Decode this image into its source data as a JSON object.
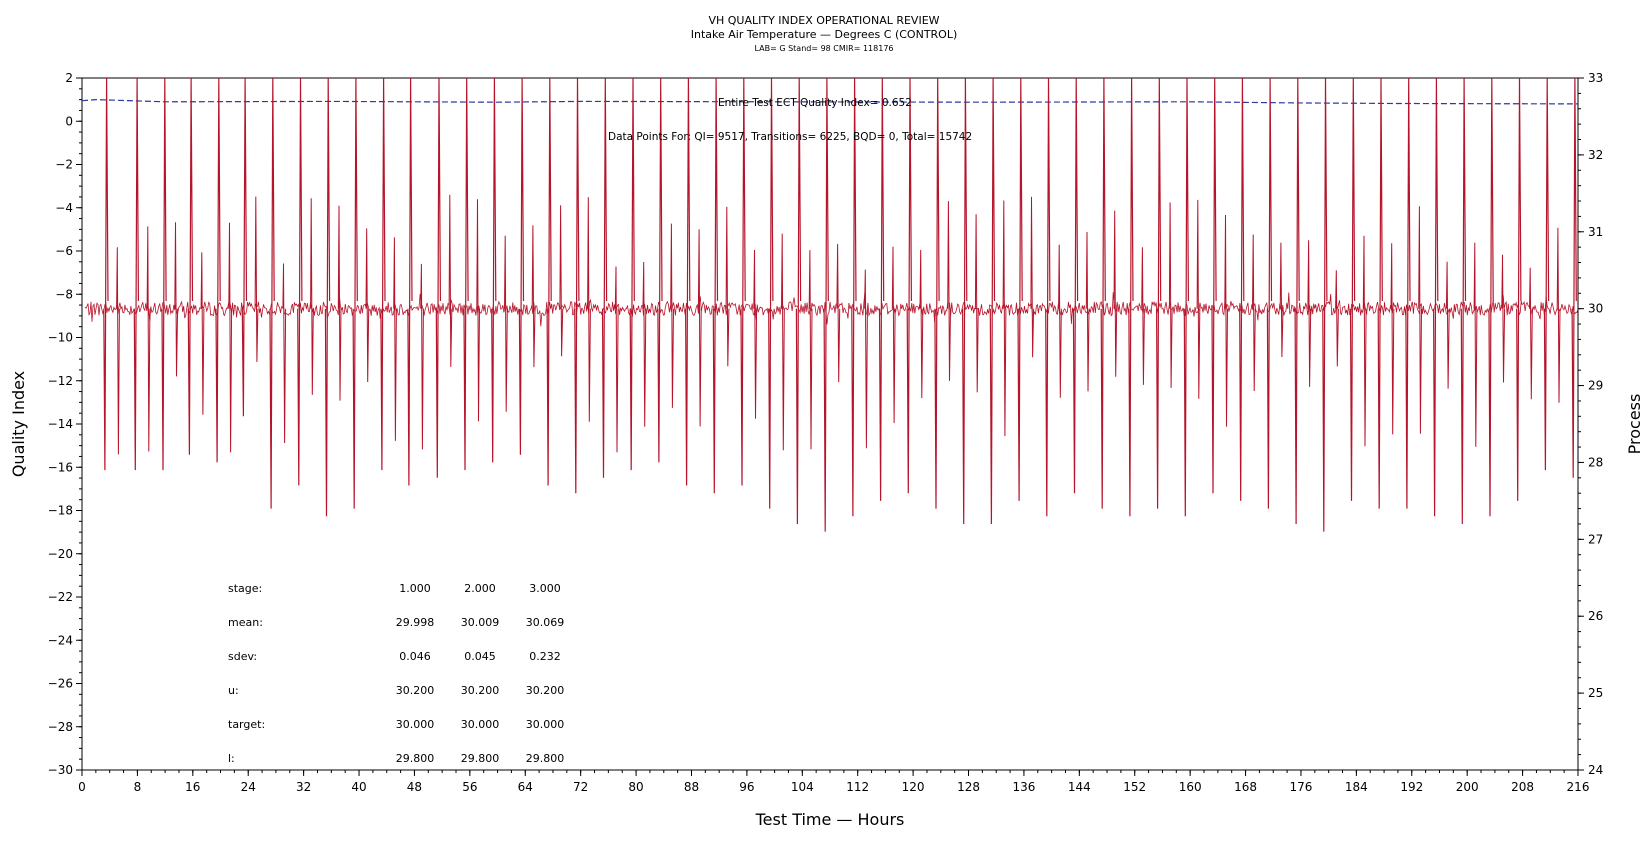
{
  "chart_data": {
    "type": "line",
    "title": "VH QUALITY INDEX OPERATIONAL REVIEW",
    "subtitle": "Intake Air Temperature — Degrees C (CONTROL)",
    "subtitle2": "LAB= G Stand= 98 CMIR= 118176",
    "xlabel": "Test Time — Hours",
    "ylabel_left": "Quality Index",
    "ylabel_right": "Process",
    "xlim": [
      0,
      216
    ],
    "ylim_left": [
      -30,
      2
    ],
    "ylim_right": [
      24,
      33
    ],
    "x_ticks": [
      0,
      8,
      16,
      24,
      32,
      40,
      48,
      56,
      64,
      72,
      80,
      88,
      96,
      104,
      112,
      120,
      128,
      136,
      144,
      152,
      160,
      168,
      176,
      184,
      192,
      200,
      208,
      216
    ],
    "y_left_ticks": [
      2,
      0,
      -2,
      -4,
      -6,
      -8,
      -10,
      -12,
      -14,
      -16,
      -18,
      -20,
      -22,
      -24,
      -26,
      -28,
      -30
    ],
    "y_right_ticks": [
      33,
      32,
      31,
      30,
      29,
      28,
      27,
      26,
      25,
      24
    ],
    "grid": false,
    "annotations": {
      "quality_index": "Entire Test ECT Quality Index=   0.652",
      "data_points": "Data Points For: QI=  9517, Transitions=  6225, BQD=     0, Total=  15742"
    },
    "series": [
      {
        "axis": "left",
        "color": "#2b3a9c",
        "style": "dashed",
        "x": [
          0,
          2,
          12,
          36,
          60,
          72,
          100,
          130,
          160,
          175,
          190,
          216
        ],
        "values": [
          0.95,
          1.0,
          0.9,
          0.92,
          0.88,
          0.92,
          0.9,
          0.88,
          0.9,
          0.85,
          0.82,
          0.8
        ]
      },
      {
        "axis": "right",
        "color": "#b5152b",
        "style": "solid",
        "baseline": 30.0,
        "spikes": {
          "x": [
            3.3,
            7.7,
            11.7,
            15.5,
            19.5,
            23.3,
            27.3,
            31.3,
            35.3,
            39.3,
            43.3,
            47.2,
            51.3,
            55.3,
            59.3,
            63.3,
            67.3,
            71.3,
            75.3,
            79.3,
            83.3,
            87.3,
            91.3,
            95.3,
            99.3,
            103.3,
            107.3,
            111.3,
            115.3,
            119.3,
            123.3,
            127.3,
            131.3,
            135.3,
            139.3,
            143.3,
            147.3,
            151.3,
            155.3,
            159.3,
            163.3,
            167.3,
            171.3,
            175.3,
            179.3,
            183.3,
            187.3,
            191.3,
            195.3,
            199.3,
            203.3,
            207.3,
            211.3,
            215.3
          ],
          "low": [
            27.9,
            27.9,
            27.9,
            28.1,
            28.0,
            28.6,
            27.4,
            27.7,
            27.3,
            27.4,
            27.9,
            27.7,
            27.8,
            27.9,
            28.0,
            28.1,
            27.7,
            27.6,
            27.8,
            27.9,
            28.0,
            27.7,
            27.6,
            27.7,
            27.4,
            27.2,
            27.1,
            27.3,
            27.5,
            27.6,
            27.4,
            27.2,
            27.2,
            27.5,
            27.3,
            27.6,
            27.4,
            27.3,
            27.4,
            27.3,
            27.6,
            27.5,
            27.4,
            27.2,
            27.1,
            27.5,
            27.4,
            27.4,
            27.3,
            27.2,
            27.3,
            27.5,
            27.9,
            27.8
          ],
          "high": 33.0
        }
      }
    ],
    "stats_table": {
      "rows": [
        {
          "label": "stage:",
          "values": [
            "1.000",
            "2.000",
            "3.000"
          ]
        },
        {
          "label": "mean:",
          "values": [
            "29.998",
            "30.009",
            "30.069"
          ]
        },
        {
          "label": "sdev:",
          "values": [
            "0.046",
            "0.045",
            "0.232"
          ]
        },
        {
          "label": "u:",
          "values": [
            "30.200",
            "30.200",
            "30.200"
          ]
        },
        {
          "label": "target:",
          "values": [
            "30.000",
            "30.000",
            "30.000"
          ]
        },
        {
          "label": "l:",
          "values": [
            "29.800",
            "29.800",
            "29.800"
          ]
        }
      ]
    }
  }
}
